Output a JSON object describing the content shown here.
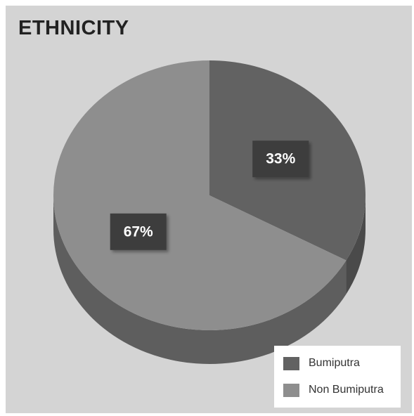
{
  "chart_data": {
    "type": "pie",
    "title": "ETHNICITY",
    "series": [
      {
        "name": "Bumiputra",
        "value": 33,
        "label": "33%",
        "color": "#626262",
        "side_color": "#4a4a4a"
      },
      {
        "name": "Non Bumiputra",
        "value": 67,
        "label": "67%",
        "color": "#8e8e8e",
        "side_color": "#5e5e5e"
      }
    ],
    "style": "3d",
    "start_angle": "12 o'clock, clockwise",
    "legend_position": "bottom-right",
    "label_box_color": "#3d3d3d",
    "background_color": "#d4d4d4"
  }
}
